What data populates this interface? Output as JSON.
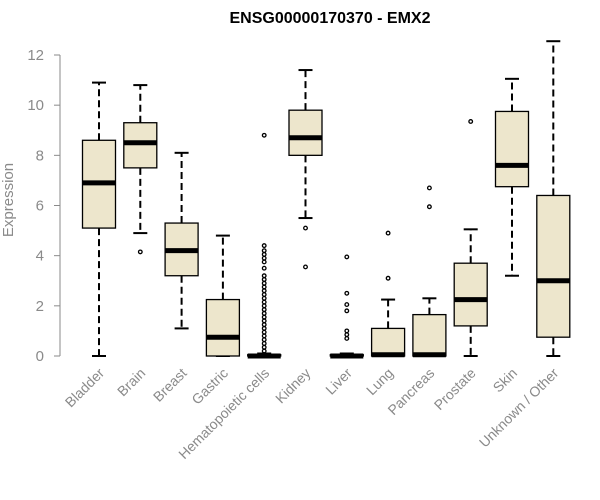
{
  "chart_data": {
    "type": "boxplot",
    "title": "ENSG00000170370 - EMX2",
    "xlabel": "",
    "ylabel": "Expression",
    "ylim": [
      0,
      12
    ],
    "yticks": [
      0,
      2,
      4,
      6,
      8,
      10,
      12
    ],
    "colors": {
      "box_fill": "#ede6cc",
      "stroke": "#000000",
      "axis": "#8a8a8a"
    },
    "categories": [
      "Bladder",
      "Brain",
      "Breast",
      "Gastric",
      "Hematopoietic cells",
      "Kidney",
      "Liver",
      "Lung",
      "Pancreas",
      "Prostate",
      "Skin",
      "Unknown / Other"
    ],
    "boxes": [
      {
        "name": "Bladder",
        "whisker_low": 0.0,
        "q1": 5.1,
        "median": 6.9,
        "q3": 8.6,
        "whisker_high": 10.9,
        "outliers": []
      },
      {
        "name": "Brain",
        "whisker_low": 4.9,
        "q1": 7.5,
        "median": 8.5,
        "q3": 9.3,
        "whisker_high": 10.8,
        "outliers": [
          4.15
        ]
      },
      {
        "name": "Breast",
        "whisker_low": 1.1,
        "q1": 3.2,
        "median": 4.2,
        "q3": 5.3,
        "whisker_high": 8.1,
        "outliers": []
      },
      {
        "name": "Gastric",
        "whisker_low": 0.0,
        "q1": 0.0,
        "median": 0.75,
        "q3": 2.25,
        "whisker_high": 4.8,
        "outliers": []
      },
      {
        "name": "Hematopoietic cells",
        "whisker_low": 0.0,
        "q1": 0.0,
        "median": 0.0,
        "q3": 0.05,
        "whisker_high": 0.1,
        "outliers": [
          0.2,
          0.35,
          0.5,
          0.65,
          0.8,
          0.95,
          1.1,
          1.25,
          1.4,
          1.55,
          1.7,
          1.85,
          2.0,
          2.15,
          2.3,
          2.45,
          2.6,
          2.75,
          2.9,
          3.05,
          3.2,
          3.5,
          3.75,
          3.9,
          4.05,
          4.2,
          4.4,
          8.8
        ]
      },
      {
        "name": "Kidney",
        "whisker_low": 5.5,
        "q1": 8.0,
        "median": 8.7,
        "q3": 9.8,
        "whisker_high": 11.4,
        "outliers": [
          5.1,
          3.55
        ]
      },
      {
        "name": "Liver",
        "whisker_low": 0.0,
        "q1": 0.0,
        "median": 0.0,
        "q3": 0.05,
        "whisker_high": 0.1,
        "outliers": [
          0.7,
          0.85,
          1.0,
          1.8,
          2.05,
          2.5,
          3.95
        ]
      },
      {
        "name": "Lung",
        "whisker_low": 0.0,
        "q1": 0.0,
        "median": 0.05,
        "q3": 1.1,
        "whisker_high": 2.25,
        "outliers": [
          3.1,
          4.9
        ]
      },
      {
        "name": "Pancreas",
        "whisker_low": 0.0,
        "q1": 0.0,
        "median": 0.05,
        "q3": 1.65,
        "whisker_high": 2.3,
        "outliers": [
          5.95,
          6.7
        ]
      },
      {
        "name": "Prostate",
        "whisker_low": 0.0,
        "q1": 1.2,
        "median": 2.25,
        "q3": 3.7,
        "whisker_high": 5.05,
        "outliers": [
          9.35
        ]
      },
      {
        "name": "Skin",
        "whisker_low": 3.2,
        "q1": 6.75,
        "median": 7.6,
        "q3": 9.75,
        "whisker_high": 11.05,
        "outliers": []
      },
      {
        "name": "Unknown / Other",
        "whisker_low": 0.0,
        "q1": 0.75,
        "median": 3.0,
        "q3": 6.4,
        "whisker_high": 12.55,
        "outliers": []
      }
    ]
  }
}
